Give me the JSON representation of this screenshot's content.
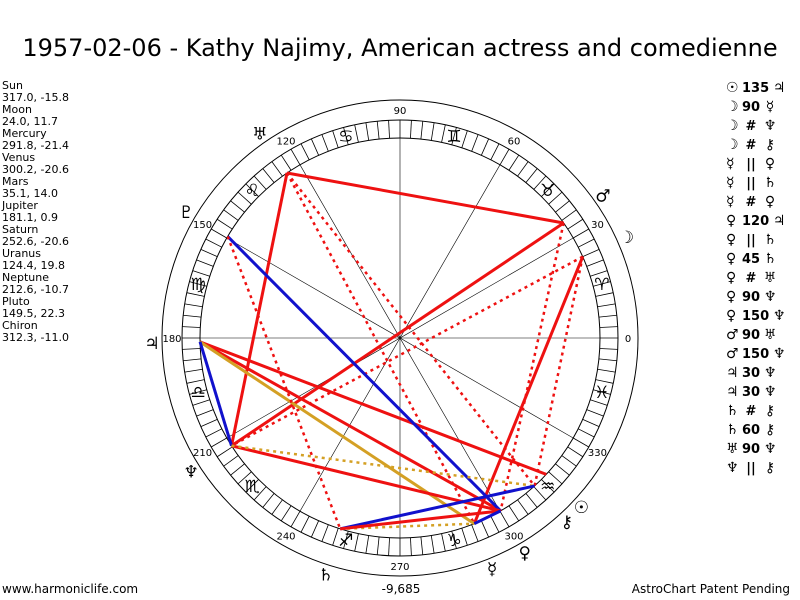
{
  "title": "1957-02-06 - Kathy Najimy, American actress and comedienne",
  "planets": [
    {
      "name": "Sun",
      "coords": "317.0, -15.8",
      "glyph": "☉",
      "lon": 317.0
    },
    {
      "name": "Moon",
      "coords": "24.0, 11.7",
      "glyph": "☽",
      "lon": 24.0
    },
    {
      "name": "Mercury",
      "coords": "291.8, -21.4",
      "glyph": "☿",
      "lon": 291.8
    },
    {
      "name": "Venus",
      "coords": "300.2, -20.6",
      "glyph": "♀",
      "lon": 300.2
    },
    {
      "name": "Mars",
      "coords": "35.1, 14.0",
      "glyph": "♂",
      "lon": 35.1
    },
    {
      "name": "Jupiter",
      "coords": "181.1, 0.9",
      "glyph": "♃",
      "lon": 181.1
    },
    {
      "name": "Saturn",
      "coords": "252.6, -20.6",
      "glyph": "♄",
      "lon": 252.6
    },
    {
      "name": "Uranus",
      "coords": "124.4, 19.8",
      "glyph": "♅",
      "lon": 124.4
    },
    {
      "name": "Neptune",
      "coords": "212.6, -10.7",
      "glyph": "♆",
      "lon": 212.6
    },
    {
      "name": "Pluto",
      "coords": "149.5, 22.3",
      "glyph": "♇",
      "lon": 149.5
    },
    {
      "name": "Chiron",
      "coords": "312.3, -11.0",
      "glyph": "⚷",
      "lon": 312.3
    }
  ],
  "aspects": [
    {
      "p1": "☉",
      "sym": "135",
      "p2": "♃"
    },
    {
      "p1": "☽",
      "sym": "90",
      "p2": "☿"
    },
    {
      "p1": "☽",
      "sym": "#",
      "p2": "♆"
    },
    {
      "p1": "☽",
      "sym": "#",
      "p2": "⚷"
    },
    {
      "p1": "☿",
      "sym": "||",
      "p2": "♀"
    },
    {
      "p1": "☿",
      "sym": "||",
      "p2": "♄"
    },
    {
      "p1": "☿",
      "sym": "#",
      "p2": "♀"
    },
    {
      "p1": "♀",
      "sym": "120",
      "p2": "♃"
    },
    {
      "p1": "♀",
      "sym": "||",
      "p2": "♄"
    },
    {
      "p1": "♀",
      "sym": "45",
      "p2": "♄"
    },
    {
      "p1": "♀",
      "sym": "#",
      "p2": "♅"
    },
    {
      "p1": "♀",
      "sym": "90",
      "p2": "♆"
    },
    {
      "p1": "♀",
      "sym": "150",
      "p2": "♆"
    },
    {
      "p1": "♂",
      "sym": "90",
      "p2": "♅"
    },
    {
      "p1": "♂",
      "sym": "150",
      "p2": "♆"
    },
    {
      "p1": "♃",
      "sym": "30",
      "p2": "♆"
    },
    {
      "p1": "♃",
      "sym": "30",
      "p2": "♆"
    },
    {
      "p1": "♄",
      "sym": "#",
      "p2": "⚷"
    },
    {
      "p1": "♄",
      "sym": "60",
      "p2": "⚷"
    },
    {
      "p1": "♅",
      "sym": "90",
      "p2": "♆"
    },
    {
      "p1": "♆",
      "sym": "||",
      "p2": "⚷"
    }
  ],
  "zodiac": [
    "♈",
    "♉",
    "♊",
    "♋",
    "♌",
    "♍",
    "♎",
    "♏",
    "♐",
    "♑",
    "♒",
    "♓"
  ],
  "degree_labels": [
    "0",
    "30",
    "60",
    "90",
    "120",
    "150",
    "180",
    "210",
    "240",
    "270",
    "300",
    "330"
  ],
  "center_value": "-9,685",
  "footer_left": "www.harmoniclife.com",
  "footer_right": "AstroChart Patent Pending",
  "colors": {
    "red": "#ee1111",
    "blue": "#1111cc",
    "gold": "#d4a024",
    "ring": "#000000"
  }
}
